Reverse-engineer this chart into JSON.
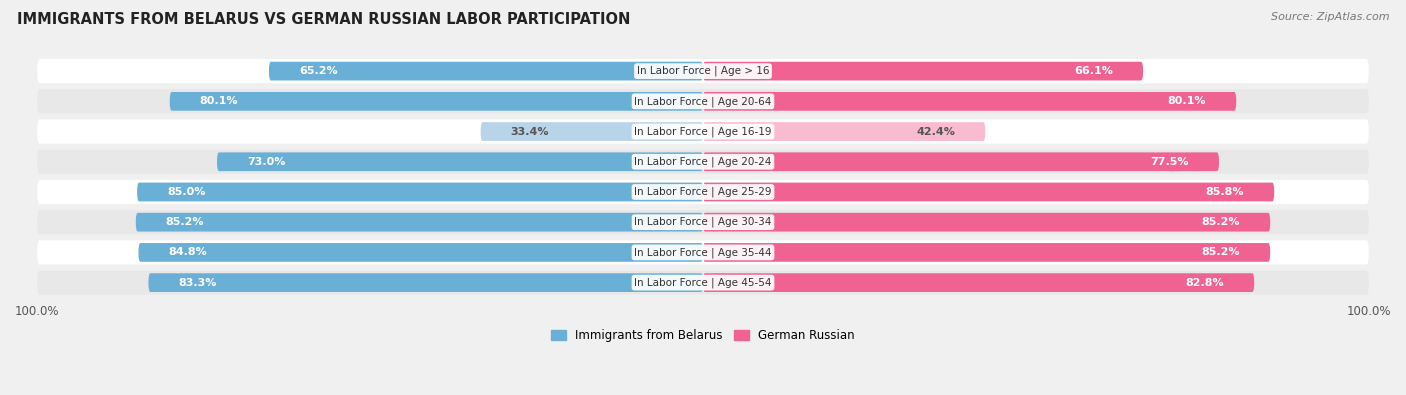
{
  "title": "IMMIGRANTS FROM BELARUS VS GERMAN RUSSIAN LABOR PARTICIPATION",
  "source": "Source: ZipAtlas.com",
  "categories": [
    "In Labor Force | Age > 16",
    "In Labor Force | Age 20-64",
    "In Labor Force | Age 16-19",
    "In Labor Force | Age 20-24",
    "In Labor Force | Age 25-29",
    "In Labor Force | Age 30-34",
    "In Labor Force | Age 35-44",
    "In Labor Force | Age 45-54"
  ],
  "belarus_values": [
    65.2,
    80.1,
    33.4,
    73.0,
    85.0,
    85.2,
    84.8,
    83.3
  ],
  "german_russian_values": [
    66.1,
    80.1,
    42.4,
    77.5,
    85.8,
    85.2,
    85.2,
    82.8
  ],
  "belarus_color": "#6aafd6",
  "belarus_color_light": "#b8d4e8",
  "german_russian_color": "#f06292",
  "german_russian_color_light": "#f8bbd0",
  "bar_height": 0.62,
  "bg_color": "#f0f0f0",
  "row_bg_even": "#ffffff",
  "row_bg_odd": "#e8e8e8",
  "max_value": 100.0,
  "label_fontsize": 8.0,
  "category_fontsize": 7.5,
  "title_fontsize": 10.5,
  "source_fontsize": 8.0,
  "threshold_light": 50
}
